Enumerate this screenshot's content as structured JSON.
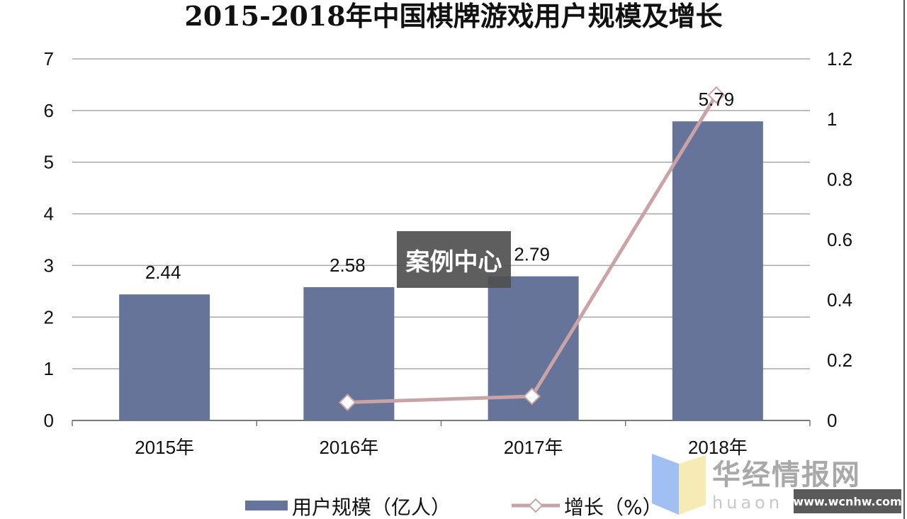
{
  "chart_data": {
    "type": "bar+line",
    "title": "2015-2018年中国棋牌游戏用户规模及增长",
    "categories": [
      "2015年",
      "2016年",
      "2017年",
      "2018年"
    ],
    "series": [
      {
        "name": "用户规模（亿人）",
        "type": "bar",
        "axis": "left",
        "values": [
          2.44,
          2.58,
          2.79,
          5.79
        ],
        "color": "#66749a",
        "data_labels": [
          "2.44",
          "2.58",
          "2.79",
          "5.79"
        ]
      },
      {
        "name": "增长（%）",
        "type": "line",
        "axis": "right",
        "values": [
          null,
          0.06,
          0.08,
          1.08
        ],
        "color": "#c9a3a6",
        "marker": "diamond"
      }
    ],
    "y_left": {
      "lim": [
        0,
        7
      ],
      "ticks": [
        "0",
        "1",
        "2",
        "3",
        "4",
        "5",
        "6",
        "7"
      ]
    },
    "y_right": {
      "lim": [
        0,
        1.2
      ],
      "ticks": [
        "0",
        "0.2",
        "0.4",
        "0.6",
        "0.8",
        "1",
        "1.2"
      ]
    },
    "grid": true,
    "legend_position": "bottom"
  },
  "overlay": {
    "label": "案例中心"
  },
  "watermark": {
    "name": "华经情报网",
    "sub": "huaon",
    "url": "www.wcnhw.com"
  }
}
